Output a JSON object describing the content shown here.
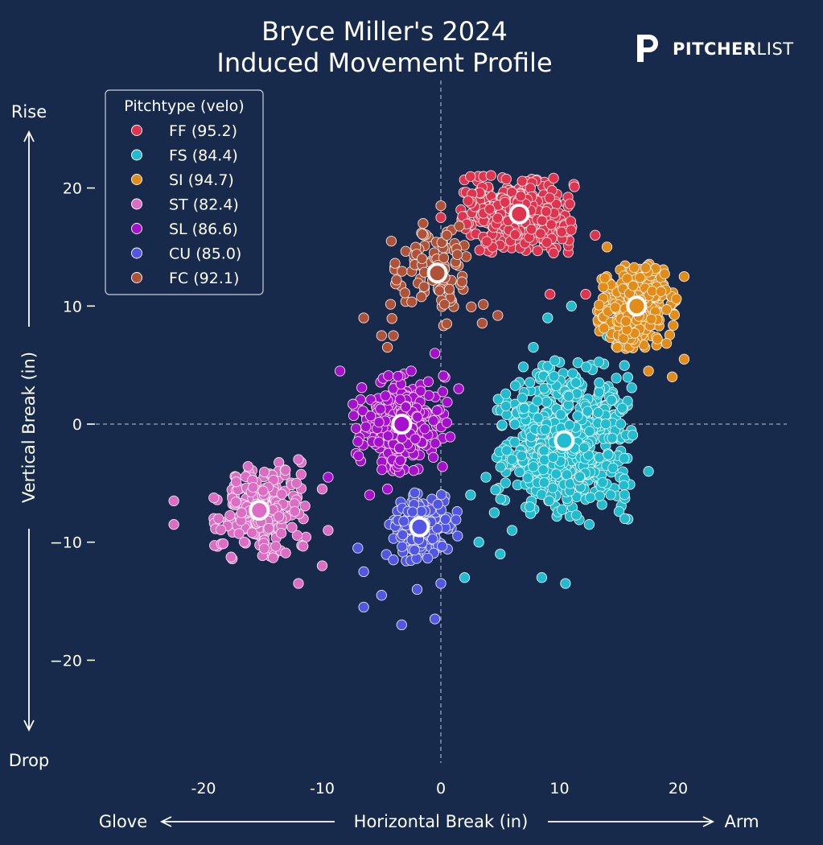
{
  "header": {
    "title_line1": "Bryce Miller's 2024",
    "title_line2": "Induced Movement Profile",
    "brand_bold": "PITCHER",
    "brand_light": "LIST"
  },
  "colors": {
    "background": "#172a4c",
    "text": "#ffffff",
    "axis_dashes": "#9aa6b8"
  },
  "chart_data": {
    "type": "scatter",
    "title": "Bryce Miller's 2024 Induced Movement Profile",
    "xlabel": "Horizontal Break (in)",
    "ylabel": "Vertical Break (in)",
    "xlim": [
      -30,
      29
    ],
    "ylim": [
      -28,
      29
    ],
    "x_ticks": [
      -20,
      -10,
      0,
      10,
      20
    ],
    "x_tick_labels": [
      "-20",
      "-10",
      "0",
      "10",
      "20"
    ],
    "y_ticks": [
      20,
      10,
      0,
      -10,
      -20
    ],
    "y_tick_labels": [
      "20",
      "10",
      "0",
      "−10",
      "−20"
    ],
    "grid": false,
    "zero_lines": true,
    "legend_title": "Pitchtype (velo)",
    "legend_position": "top-left",
    "direction_labels": {
      "top": "Rise",
      "bottom": "Drop",
      "left": "Glove",
      "right": "Arm"
    },
    "series": [
      {
        "name": "FF (95.2)",
        "pitch": "FF",
        "velo": 95.2,
        "color": "#e0334d",
        "mean": [
          6.6,
          17.8
        ],
        "count": 420,
        "spread": [
          2.9,
          1.9
        ],
        "outliers": [
          [
            2.3,
            18.9
          ],
          [
            0.0,
            17.5
          ],
          [
            13.0,
            16.0
          ],
          [
            9.5,
            14.5
          ],
          [
            12.2,
            11.0
          ],
          [
            9.2,
            11.0
          ]
        ]
      },
      {
        "name": "FS (84.4)",
        "pitch": "FS",
        "velo": 84.4,
        "color": "#21bccf",
        "mean": [
          10.4,
          -1.4
        ],
        "count": 560,
        "spread": [
          3.4,
          4.0
        ],
        "outliers": [
          [
            3.8,
            -4.5
          ],
          [
            4.5,
            -7.5
          ],
          [
            3.2,
            -10.0
          ],
          [
            2.0,
            -13.0
          ],
          [
            6.0,
            -9.0
          ],
          [
            8.5,
            -13.0
          ],
          [
            10.5,
            -13.5
          ],
          [
            12.5,
            -8.5
          ],
          [
            5.0,
            -11.0
          ],
          [
            7.5,
            -7.0
          ],
          [
            9.0,
            9.0
          ],
          [
            7.8,
            6.5
          ],
          [
            11.0,
            10.0
          ],
          [
            14.0,
            7.5
          ],
          [
            17.5,
            -4.0
          ],
          [
            15.5,
            -8.0
          ],
          [
            2.5,
            -6.0
          ],
          [
            6.0,
            -3.0
          ]
        ]
      },
      {
        "name": "SI (94.7)",
        "pitch": "SI",
        "velo": 94.7,
        "color": "#e38c17",
        "mean": [
          16.5,
          10.0
        ],
        "count": 320,
        "spread": [
          2.0,
          2.1
        ],
        "outliers": [
          [
            20.5,
            5.5
          ],
          [
            19.5,
            4.0
          ],
          [
            20.5,
            12.5
          ],
          [
            14.0,
            15.0
          ],
          [
            17.5,
            4.5
          ]
        ]
      },
      {
        "name": "ST (82.4)",
        "pitch": "ST",
        "velo": 82.4,
        "color": "#dd6cc4",
        "mean": [
          -15.3,
          -7.3
        ],
        "count": 240,
        "spread": [
          2.3,
          2.4
        ],
        "outliers": [
          [
            -22.5,
            -6.5
          ],
          [
            -22.5,
            -8.5
          ],
          [
            -12.0,
            -13.5
          ],
          [
            -10.0,
            -12.0
          ],
          [
            -9.5,
            -9.0
          ],
          [
            -10.0,
            -5.5
          ],
          [
            -12.0,
            -3.0
          ]
        ]
      },
      {
        "name": "SL (86.6)",
        "pitch": "SL",
        "velo": 86.6,
        "color": "#a60fce",
        "mean": [
          -3.3,
          0.0
        ],
        "count": 260,
        "spread": [
          2.4,
          2.5
        ],
        "outliers": [
          [
            -8.5,
            4.5
          ],
          [
            -9.5,
            -4.5
          ],
          [
            -6.0,
            -6.0
          ],
          [
            -0.5,
            6.0
          ],
          [
            -2.5,
            4.5
          ],
          [
            1.5,
            3.0
          ],
          [
            -1.0,
            -7.0
          ],
          [
            -4.5,
            -5.5
          ]
        ]
      },
      {
        "name": "CU (85.0)",
        "pitch": "CU",
        "velo": 85.0,
        "color": "#5156e6",
        "mean": [
          -1.8,
          -8.7
        ],
        "count": 150,
        "spread": [
          1.9,
          1.7
        ],
        "outliers": [
          [
            -6.5,
            -15.5
          ],
          [
            -5.0,
            -14.5
          ],
          [
            -3.3,
            -17.0
          ],
          [
            -0.5,
            -16.5
          ],
          [
            -4.0,
            -11.5
          ],
          [
            0.0,
            -13.5
          ],
          [
            -2.0,
            -14.0
          ],
          [
            -7.0,
            -10.5
          ],
          [
            -6.5,
            -12.5
          ]
        ]
      },
      {
        "name": "FC (92.1)",
        "pitch": "FC",
        "velo": 92.1,
        "color": "#b05237",
        "mean": [
          -0.3,
          12.8
        ],
        "count": 90,
        "spread": [
          2.4,
          2.6
        ],
        "outliers": [
          [
            -6.5,
            9.0
          ],
          [
            -5.0,
            7.5
          ],
          [
            -4.0,
            7.5
          ],
          [
            -4.5,
            6.5
          ],
          [
            0.5,
            8.5
          ],
          [
            4.8,
            9.2
          ],
          [
            0.0,
            18.5
          ],
          [
            0.5,
            16.0
          ],
          [
            -1.5,
            17.0
          ]
        ]
      }
    ]
  }
}
